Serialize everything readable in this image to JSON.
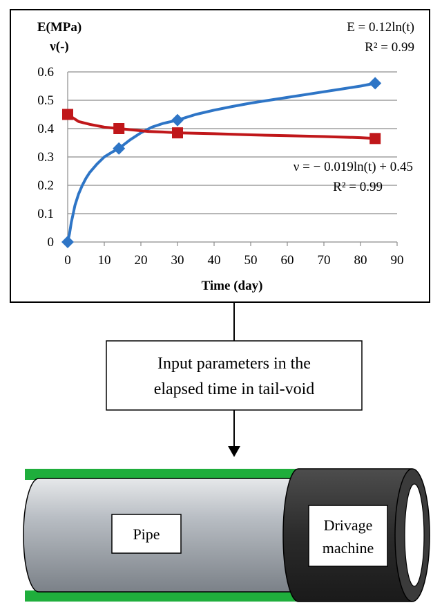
{
  "chart_data": {
    "type": "line",
    "ylabel_lines": [
      "E(MPa)",
      "ν(-)"
    ],
    "xlabel": "Time (day)",
    "xlim": [
      0,
      90
    ],
    "ylim": [
      0,
      0.6
    ],
    "x_ticks": [
      "0",
      "10",
      "20",
      "30",
      "40",
      "50",
      "60",
      "70",
      "80",
      "90"
    ],
    "y_ticks": [
      "0",
      "0.1",
      "0.2",
      "0.3",
      "0.4",
      "0.5",
      "0.6"
    ],
    "grid": "horizontal",
    "series": [
      {
        "key": "E",
        "color": "#2e75c6",
        "marker": "diamond",
        "equation": "E = 0.12ln(t)",
        "r2": "R² = 0.99",
        "points": [
          [
            0,
            0
          ],
          [
            14,
            0.33
          ],
          [
            30,
            0.43
          ],
          [
            84,
            0.56
          ]
        ],
        "curve": [
          [
            0,
            0
          ],
          [
            0.5,
            0.03
          ],
          [
            1,
            0.07
          ],
          [
            1.5,
            0.1
          ],
          [
            2,
            0.13
          ],
          [
            3,
            0.17
          ],
          [
            4,
            0.2
          ],
          [
            5,
            0.225
          ],
          [
            6,
            0.245
          ],
          [
            8,
            0.275
          ],
          [
            10,
            0.3
          ],
          [
            12,
            0.316
          ],
          [
            14,
            0.33
          ],
          [
            17,
            0.36
          ],
          [
            20,
            0.385
          ],
          [
            23,
            0.405
          ],
          [
            26,
            0.418
          ],
          [
            30,
            0.43
          ],
          [
            35,
            0.45
          ],
          [
            40,
            0.465
          ],
          [
            45,
            0.478
          ],
          [
            50,
            0.49
          ],
          [
            55,
            0.5
          ],
          [
            60,
            0.51
          ],
          [
            65,
            0.52
          ],
          [
            70,
            0.53
          ],
          [
            75,
            0.54
          ],
          [
            80,
            0.55
          ],
          [
            84,
            0.56
          ]
        ]
      },
      {
        "key": "nu",
        "color": "#c0171a",
        "marker": "square",
        "equation": "ν = − 0.019ln(t) + 0.45",
        "r2": "R² = 0.99",
        "points": [
          [
            0,
            0.45
          ],
          [
            14,
            0.4
          ],
          [
            30,
            0.385
          ],
          [
            84,
            0.365
          ]
        ],
        "curve": [
          [
            0,
            0.45
          ],
          [
            3,
            0.425
          ],
          [
            6,
            0.415
          ],
          [
            10,
            0.405
          ],
          [
            14,
            0.4
          ],
          [
            18,
            0.395
          ],
          [
            22,
            0.39
          ],
          [
            26,
            0.388
          ],
          [
            30,
            0.385
          ],
          [
            40,
            0.382
          ],
          [
            50,
            0.378
          ],
          [
            60,
            0.375
          ],
          [
            70,
            0.372
          ],
          [
            80,
            0.368
          ],
          [
            84,
            0.365
          ]
        ]
      }
    ]
  },
  "flow_box": {
    "line1": "Input parameters in the",
    "line2": "elapsed time in tail-void"
  },
  "pipe_label": "Pipe",
  "machine_label": {
    "line1": "Drivage",
    "line2": "machine"
  },
  "colors": {
    "pipe_body": "#b3b8bf",
    "pipe_band": "#1fae3c",
    "machine": "#333333"
  }
}
